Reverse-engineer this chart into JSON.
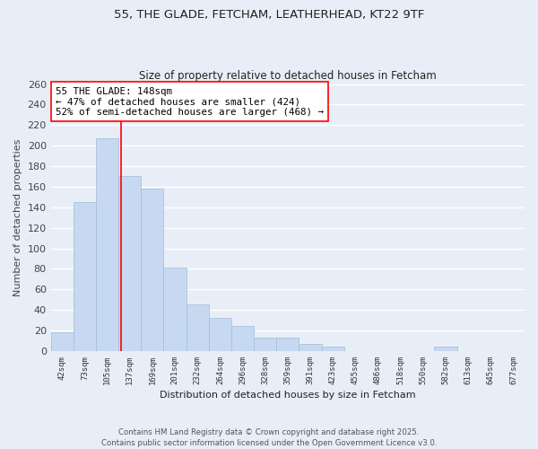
{
  "title1": "55, THE GLADE, FETCHAM, LEATHERHEAD, KT22 9TF",
  "title2": "Size of property relative to detached houses in Fetcham",
  "xlabel": "Distribution of detached houses by size in Fetcham",
  "ylabel": "Number of detached properties",
  "bar_color": "#c6d9f0",
  "bar_edge_color": "#a0bcd8",
  "background_color": "#e8eef8",
  "grid_color": "#ffffff",
  "categories": [
    "42sqm",
    "73sqm",
    "105sqm",
    "137sqm",
    "169sqm",
    "201sqm",
    "232sqm",
    "264sqm",
    "296sqm",
    "328sqm",
    "359sqm",
    "391sqm",
    "423sqm",
    "455sqm",
    "486sqm",
    "518sqm",
    "550sqm",
    "582sqm",
    "613sqm",
    "645sqm",
    "677sqm"
  ],
  "values": [
    18,
    145,
    207,
    170,
    158,
    81,
    45,
    32,
    24,
    13,
    13,
    7,
    4,
    0,
    0,
    0,
    0,
    4,
    0,
    0,
    0
  ],
  "ylim": [
    0,
    260
  ],
  "yticks": [
    0,
    20,
    40,
    60,
    80,
    100,
    120,
    140,
    160,
    180,
    200,
    220,
    240,
    260
  ],
  "vline_x": 3.11,
  "annotation_title": "55 THE GLADE: 148sqm",
  "annotation_line1": "← 47% of detached houses are smaller (424)",
  "annotation_line2": "52% of semi-detached houses are larger (468) →",
  "footer1": "Contains HM Land Registry data © Crown copyright and database right 2025.",
  "footer2": "Contains public sector information licensed under the Open Government Licence v3.0."
}
